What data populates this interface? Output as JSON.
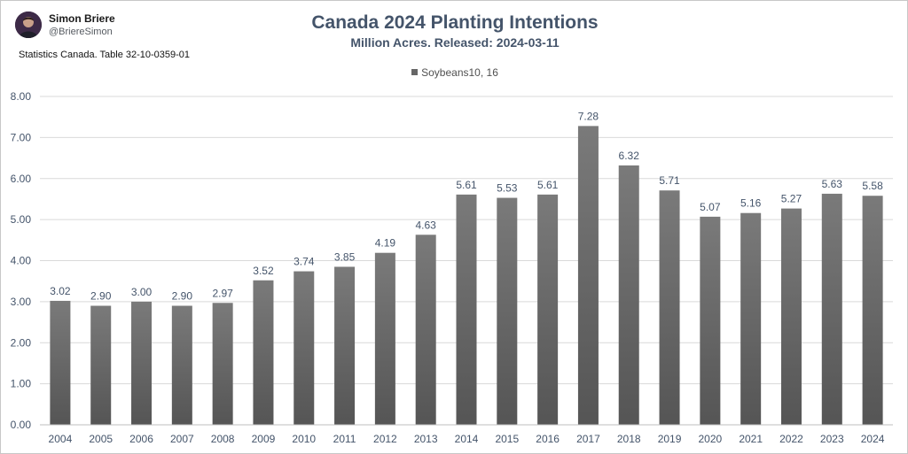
{
  "author": {
    "name": "Simon Briere",
    "handle": "@BriereSimon"
  },
  "source": "Statistics Canada. Table 32-10-0359-01",
  "colors": {
    "bar_top": "#7a7a7a",
    "bar_bottom": "#555555",
    "title": "#44546a",
    "grid": "#d9d9d9",
    "axis_text": "#44546a"
  },
  "chart_data": {
    "type": "bar",
    "title": "Canada 2024 Planting Intentions",
    "subtitle": "Million Acres. Released: 2024-03-11",
    "xlabel": "",
    "ylabel": "",
    "ylim": [
      0,
      8
    ],
    "yticks": [
      "0.00",
      "1.00",
      "2.00",
      "3.00",
      "4.00",
      "5.00",
      "6.00",
      "7.00",
      "8.00"
    ],
    "grid": true,
    "legend_position": "top-center",
    "categories": [
      "2004",
      "2005",
      "2006",
      "2007",
      "2008",
      "2009",
      "2010",
      "2011",
      "2012",
      "2013",
      "2014",
      "2015",
      "2016",
      "2017",
      "2018",
      "2019",
      "2020",
      "2021",
      "2022",
      "2023",
      "2024"
    ],
    "series": [
      {
        "name": "Soybeans10, 16",
        "values": [
          3.02,
          2.9,
          3.0,
          2.9,
          2.97,
          3.52,
          3.74,
          3.85,
          4.19,
          4.63,
          5.61,
          5.53,
          5.61,
          7.28,
          6.32,
          5.71,
          5.07,
          5.16,
          5.27,
          5.63,
          5.58
        ],
        "labels": [
          "3.02",
          "2.90",
          "3.00",
          "2.90",
          "2.97",
          "3.52",
          "3.74",
          "3.85",
          "4.19",
          "4.63",
          "5.61",
          "5.53",
          "5.61",
          "7.28",
          "6.32",
          "5.71",
          "5.07",
          "5.16",
          "5.27",
          "5.63",
          "5.58"
        ]
      }
    ]
  }
}
